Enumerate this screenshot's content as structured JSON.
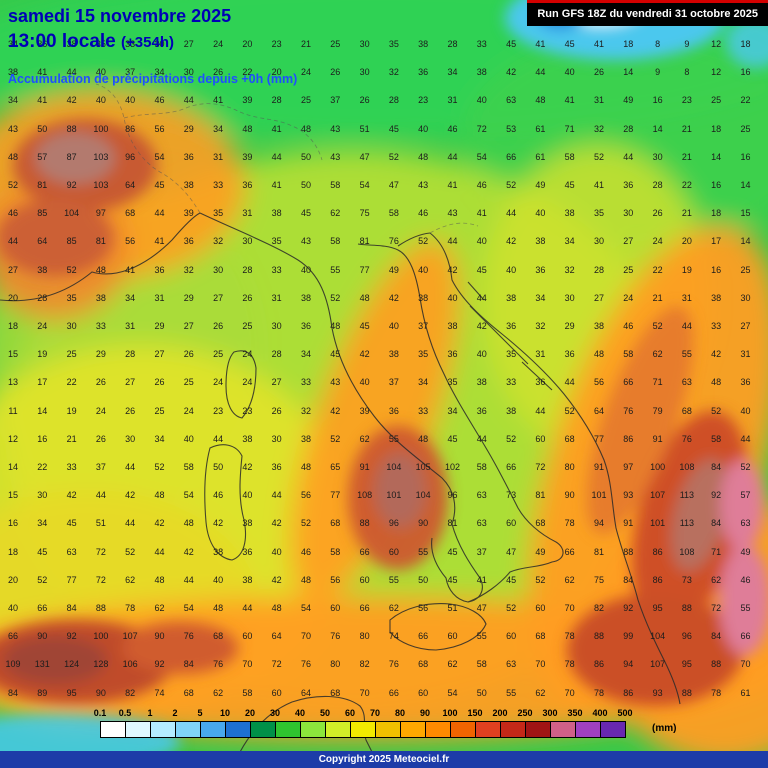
{
  "header": {
    "date_line": "samedi 15 novembre 2025",
    "time_line": "13:00 locale",
    "forecast_offset": "(+354h)",
    "subtitle": "Accumulation de précipitations depuis +0h (mm)",
    "run_label": "Run GFS 18Z du vendredi 31 octobre 2025"
  },
  "legend": {
    "tick_labels": [
      "0.1",
      "0.5",
      "1",
      "2",
      "5",
      "10",
      "20",
      "30",
      "40",
      "50",
      "60",
      "70",
      "80",
      "90",
      "100",
      "150",
      "200",
      "250",
      "300",
      "350",
      "400",
      "500"
    ],
    "colors": [
      "#ffffff",
      "#e0f8ff",
      "#b4ecff",
      "#80d4f8",
      "#48a8ec",
      "#1d70d0",
      "#009048",
      "#2fc42f",
      "#8ce63c",
      "#d2ee28",
      "#f2ea00",
      "#f0c000",
      "#ffa800",
      "#ff8a00",
      "#f06400",
      "#e04020",
      "#c42818",
      "#a01414",
      "#d06088",
      "#a040c0",
      "#6828b0"
    ],
    "unit": "(mm)"
  },
  "footer": {
    "copyright": "Copyright 2025 Meteociel.fr"
  },
  "map": {
    "base_color": "#36c94a",
    "palette": {
      "green": "#36c94a",
      "yellow_green": "#b6df34",
      "yellow": "#e2e32a",
      "orange": "#ff9d22",
      "red": "#cc5a30",
      "dark_red": "#a04434",
      "pink": "#df7d98",
      "cyan": "#4cc8ee"
    }
  },
  "grid": {
    "cols": 26,
    "rows": [
      "34 36 38 35 33 30 27 24 20 23 21 25 30 35 38 28 33 45 41 45 41 18 8 9 12 18",
      "38 41 44 40 37 34 30 26 22 20 24 26 30 32 36 34 38 42 44 40 26 14 9 8 12 16",
      "34 41 42 40 40 46 44 41 39 28 25 37 26 28 23 31 40 63 48 41 31 49 16 23 25 22",
      "43 50 88 100 86 56 29 34 48 41 48 43 51 45 40 46 72 53 61 71 32 28 14 21 18 25",
      "48 57 87 103 96 54 36 31 39 44 50 43 47 52 48 44 54 66 61 58 52 44 30 21 14 16",
      "52 81 92 103 64 45 38 33 36 41 50 58 54 47 43 41 46 52 49 45 41 36 28 22 16 14",
      "46 85 104 97 68 44 39 35 31 38 45 62 75 58 46 43 41 44 40 38 35 30 26 21 18 15",
      "44 64 85 81 56 41 36 32 30 35 43 58 81 76 52 44 40 42 38 34 30 27 24 20 17 14",
      "27 38 52 48 41 36 32 30 28 33 40 55 77 49 40 42 45 40 36 32 28 25 22 19 16 25",
      "20 28 35 38 34 31 29 27 26 31 38 52 48 42 38 40 44 38 34 30 27 24 21 31 38 30",
      "18 24 30 33 31 29 27 26 25 30 36 48 45 40 37 38 42 36 32 29 38 46 52 44 33 27",
      "15 19 25 29 28 27 26 25 24 28 34 45 42 38 35 36 40 35 31 36 48 58 62 55 42 31",
      "13 17 22 26 27 26 25 24 24 27 33 43 40 37 34 35 38 33 36 44 56 66 71 63 48 36",
      "11 14 19 24 26 25 24 23 23 26 32 42 39 36 33 34 36 38 44 52 64 76 79 68 52 40",
      "12 16 21 26 30 34 40 44 38 30 38 52 62 55 48 45 44 52 60 68 77 86 91 76 58 44",
      "14 22 33 37 44 52 58 50 42 36 48 65 91 104 105 102 58 66 72 80 91 97 100 108 84 52",
      "15 30 42 44 42 48 54 46 40 44 56 77 108 101 104 96 63 73 81 90 101 93 107 113 92 57",
      "16 34 45 51 44 42 48 42 38 42 52 68 88 96 90 81 63 60 68 78 94 91 101 113 84 63",
      "18 45 63 72 52 44 42 38 36 40 46 58 66 60 55 45 37 47 49 66 81 88 86 108 71 49",
      "20 52 77 72 62 48 44 40 38 42 48 56 60 55 50 45 41 45 52 62 75 84 86 73 62 46",
      "40 66 84 88 78 62 54 48 44 48 54 60 66 62 56 51 47 52 60 70 82 92 95 88 72 55",
      "66 90 92 100 107 90 76 68 60 64 70 76 80 74 66 60 55 60 68 78 88 99 104 96 84 66",
      "109 131 124 128 106 92 84 76 70 72 76 80 82 76 68 62 58 63 70 78 86 94 107 95 88 70",
      "84 89 95 90 82 74 68 62 58 60 64 68 70 66 60 54 50 55 62 70 78 86 93 88 78 61"
    ]
  }
}
